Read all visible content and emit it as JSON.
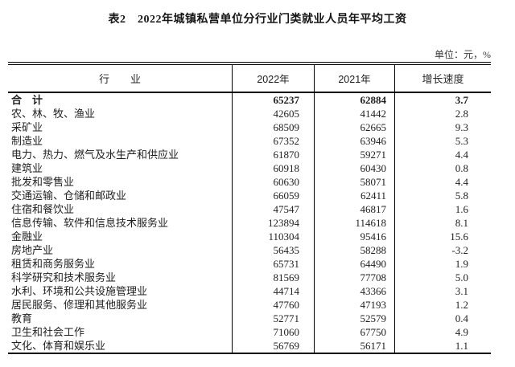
{
  "title": "表2　2022年城镇私营单位分行业门类就业人员年平均工资",
  "unit_note": "单位：元，%",
  "table": {
    "columns": [
      "行　　业",
      "2022年",
      "2021年",
      "增长速度"
    ],
    "rows": [
      {
        "industry": "合　计",
        "y2022": "65237",
        "y2021": "62884",
        "growth": "3.7",
        "bold": true
      },
      {
        "industry": "农、林、牧、渔业",
        "y2022": "42605",
        "y2021": "41442",
        "growth": "2.8",
        "bold": false
      },
      {
        "industry": "采矿业",
        "y2022": "68509",
        "y2021": "62665",
        "growth": "9.3",
        "bold": false
      },
      {
        "industry": "制造业",
        "y2022": "67352",
        "y2021": "63946",
        "growth": "5.3",
        "bold": false
      },
      {
        "industry": "电力、热力、燃气及水生产和供应业",
        "y2022": "61870",
        "y2021": "59271",
        "growth": "4.4",
        "bold": false
      },
      {
        "industry": "建筑业",
        "y2022": "60918",
        "y2021": "60430",
        "growth": "0.8",
        "bold": false
      },
      {
        "industry": "批发和零售业",
        "y2022": "60630",
        "y2021": "58071",
        "growth": "4.4",
        "bold": false
      },
      {
        "industry": "交通运输、仓储和邮政业",
        "y2022": "66059",
        "y2021": "62411",
        "growth": "5.8",
        "bold": false
      },
      {
        "industry": "住宿和餐饮业",
        "y2022": "47547",
        "y2021": "46817",
        "growth": "1.6",
        "bold": false
      },
      {
        "industry": "信息传输、软件和信息技术服务业",
        "y2022": "123894",
        "y2021": "114618",
        "growth": "8.1",
        "bold": false
      },
      {
        "industry": "金融业",
        "y2022": "110304",
        "y2021": "95416",
        "growth": "15.6",
        "bold": false
      },
      {
        "industry": "房地产业",
        "y2022": "56435",
        "y2021": "58288",
        "growth": "-3.2",
        "bold": false
      },
      {
        "industry": "租赁和商务服务业",
        "y2022": "65731",
        "y2021": "64490",
        "growth": "1.9",
        "bold": false
      },
      {
        "industry": "科学研究和技术服务业",
        "y2022": "81569",
        "y2021": "77708",
        "growth": "5.0",
        "bold": false
      },
      {
        "industry": "水利、环境和公共设施管理业",
        "y2022": "44714",
        "y2021": "43366",
        "growth": "3.1",
        "bold": false
      },
      {
        "industry": "居民服务、修理和其他服务业",
        "y2022": "47760",
        "y2021": "47193",
        "growth": "1.2",
        "bold": false
      },
      {
        "industry": "教育",
        "y2022": "52771",
        "y2021": "52579",
        "growth": "0.4",
        "bold": false
      },
      {
        "industry": "卫生和社会工作",
        "y2022": "71060",
        "y2021": "67750",
        "growth": "4.9",
        "bold": false
      },
      {
        "industry": "文化、体育和娱乐业",
        "y2022": "56769",
        "y2021": "56171",
        "growth": "1.1",
        "bold": false
      }
    ]
  }
}
